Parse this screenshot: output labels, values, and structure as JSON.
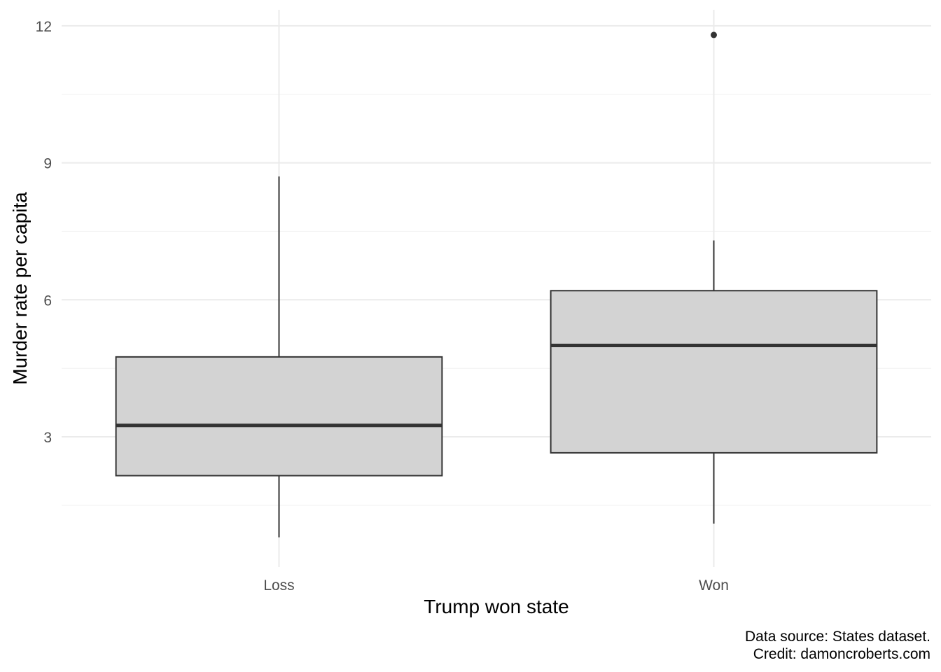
{
  "chart_data": {
    "type": "boxplot",
    "title": "",
    "xlabel": "Trump won state",
    "ylabel": "Murder rate per capita",
    "ylim": [
      0.15,
      12.35
    ],
    "y_ticks": [
      3,
      6,
      9,
      12
    ],
    "y_minor_ticks": [
      1.5,
      4.5,
      7.5,
      10.5
    ],
    "grid": true,
    "legend": "none",
    "fill_color": "#d3d3d3",
    "line_color": "#333333",
    "categories": [
      "Loss",
      "Won"
    ],
    "boxes": [
      {
        "category": "Loss",
        "whisker_low": 0.8,
        "q1": 2.15,
        "median": 3.25,
        "q3": 4.75,
        "whisker_high": 8.7,
        "outliers": []
      },
      {
        "category": "Won",
        "whisker_low": 1.1,
        "q1": 2.65,
        "median": 5.0,
        "q3": 6.2,
        "whisker_high": 7.3,
        "outliers": [
          11.8
        ]
      }
    ],
    "caption": [
      "Data source: States dataset.",
      "Credit: damoncroberts.com"
    ]
  }
}
